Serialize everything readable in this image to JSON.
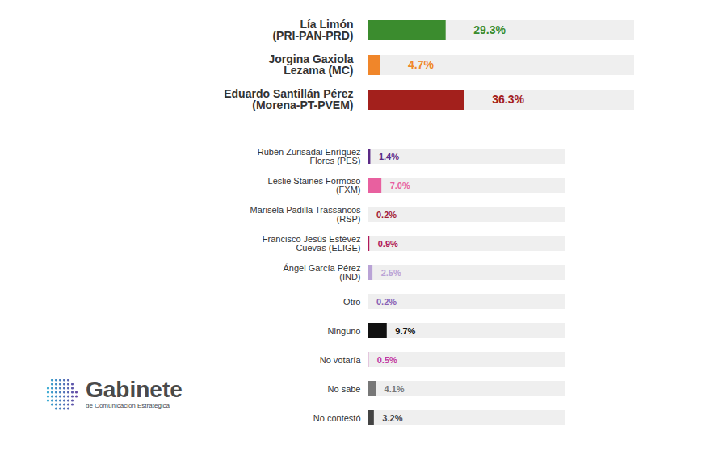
{
  "chart_data": {
    "type": "bar",
    "orientation": "horizontal",
    "categories": [
      "Lía Limón\n(PRI-PAN-PRD)",
      "Jorgina Gaxiola\nLezama (MC)",
      "Eduardo Santillán Pérez\n(Morena-PT-PVEM)",
      "Rubén Zurisadai Enríquez\nFlores (PES)",
      "Leslie Staines Formoso\n(FXM)",
      "Marisela Padilla Trassancos\n(RSP)",
      "Francisco Jesús Estévez\nCuevas (ELIGE)",
      "Ángel García Pérez\n(IND)",
      "Otro",
      "Ninguno",
      "No votaría",
      "No sabe",
      "No contestó"
    ],
    "values": [
      29.3,
      4.7,
      36.3,
      1.4,
      7.0,
      0.2,
      0.9,
      2.5,
      0.2,
      9.7,
      0.5,
      4.1,
      3.2
    ],
    "value_labels": [
      "29.3%",
      "4.7%",
      "36.3%",
      "1.4%",
      "7.0%",
      "0.2%",
      "0.9%",
      "2.5%",
      "0.2%",
      "9.7%",
      "0.5%",
      "4.1%",
      "3.2%"
    ],
    "colors": [
      "#3b8c2e",
      "#f0862a",
      "#a3201c",
      "#5b2a86",
      "#e8609f",
      "#a51d35",
      "#b0185a",
      "#b9a3d6",
      "#8a5fb4",
      "#111111",
      "#c23aa3",
      "#777777",
      "#444444"
    ],
    "xlim": [
      0,
      100
    ],
    "xticks": [],
    "tick_labels": "y",
    "data_labels": true,
    "annotations": [
      "Gabinete",
      "de Comunicación Estratégica"
    ]
  }
}
